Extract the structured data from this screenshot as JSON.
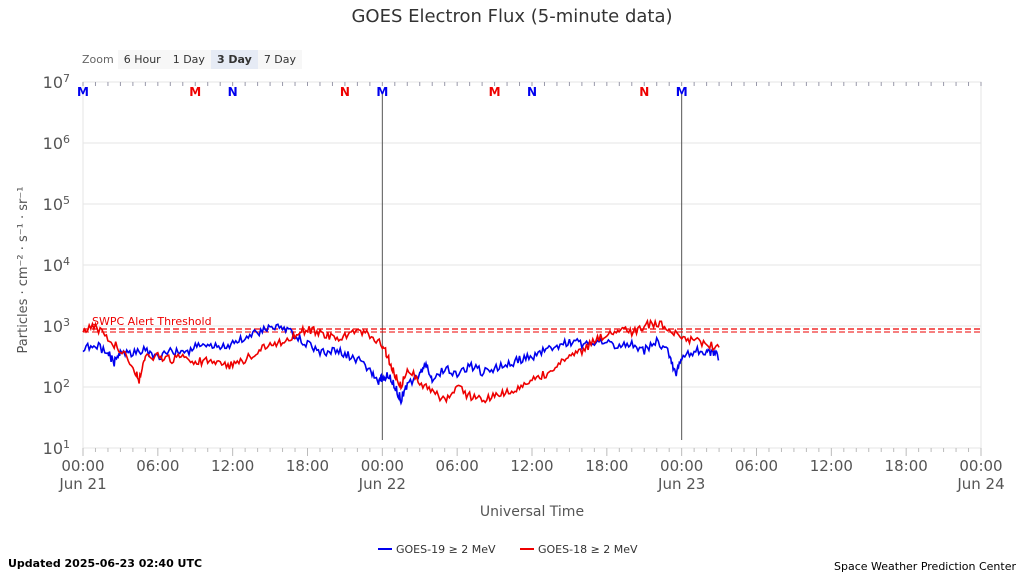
{
  "zoom": {
    "label": "Zoom",
    "buttons": [
      {
        "label": "6 Hour",
        "active": false
      },
      {
        "label": "1 Day",
        "active": false
      },
      {
        "label": "3 Day",
        "active": true
      },
      {
        "label": "7 Day",
        "active": false
      }
    ]
  },
  "footer": {
    "updated": "Updated 2025-06-23 02:40 UTC",
    "credit": "Space Weather Prediction Center"
  },
  "colors": {
    "goes19": "#0000ee",
    "goes18": "#ee0000",
    "threshold": "#ee0000",
    "grid": "#e6e6e6"
  },
  "chart_data": {
    "type": "line",
    "title": "GOES Electron Flux (5-minute data)",
    "xlabel": "Universal Time",
    "ylabel": "Particles · cm⁻² · s⁻¹ · sr⁻¹",
    "y_scale": "log",
    "ylim_exp": [
      1,
      7
    ],
    "y_ticks": [
      {
        "exp": 1,
        "base": "10",
        "sup": "1"
      },
      {
        "exp": 2,
        "base": "10",
        "sup": "2"
      },
      {
        "exp": 3,
        "base": "10",
        "sup": "3"
      },
      {
        "exp": 4,
        "base": "10",
        "sup": "4"
      },
      {
        "exp": 5,
        "base": "10",
        "sup": "5"
      },
      {
        "exp": 6,
        "base": "10",
        "sup": "6"
      },
      {
        "exp": 7,
        "base": "10",
        "sup": "7"
      }
    ],
    "x_range_hours": [
      0,
      72
    ],
    "x_ticks": [
      {
        "h": 0,
        "time": "00:00",
        "date": "Jun 21"
      },
      {
        "h": 6,
        "time": "06:00",
        "date": ""
      },
      {
        "h": 12,
        "time": "12:00",
        "date": ""
      },
      {
        "h": 18,
        "time": "18:00",
        "date": ""
      },
      {
        "h": 24,
        "time": "00:00",
        "date": "Jun 22"
      },
      {
        "h": 30,
        "time": "06:00",
        "date": ""
      },
      {
        "h": 36,
        "time": "12:00",
        "date": ""
      },
      {
        "h": 42,
        "time": "18:00",
        "date": ""
      },
      {
        "h": 48,
        "time": "00:00",
        "date": "Jun 23"
      },
      {
        "h": 54,
        "time": "06:00",
        "date": ""
      },
      {
        "h": 60,
        "time": "12:00",
        "date": ""
      },
      {
        "h": 66,
        "time": "18:00",
        "date": ""
      },
      {
        "h": 72,
        "time": "00:00",
        "date": "Jun 24"
      }
    ],
    "day_lines_hours": [
      24,
      48
    ],
    "threshold": {
      "label": "SWPC Alert Threshold",
      "exp": 3
    },
    "markers": [
      {
        "h": 0,
        "label": "M",
        "color": "blue"
      },
      {
        "h": 9,
        "label": "M",
        "color": "red"
      },
      {
        "h": 12,
        "label": "N",
        "color": "blue"
      },
      {
        "h": 21,
        "label": "N",
        "color": "red"
      },
      {
        "h": 24,
        "label": "M",
        "color": "blue"
      },
      {
        "h": 33,
        "label": "M",
        "color": "red"
      },
      {
        "h": 36,
        "label": "N",
        "color": "blue"
      },
      {
        "h": 45,
        "label": "N",
        "color": "red"
      },
      {
        "h": 48,
        "label": "M",
        "color": "blue"
      }
    ],
    "series": [
      {
        "name": "GOES-19 ≥ 2 MeV",
        "color": "#0000ee",
        "points": [
          [
            0,
            2.65
          ],
          [
            1,
            2.7
          ],
          [
            2,
            2.55
          ],
          [
            2.5,
            2.4
          ],
          [
            3,
            2.6
          ],
          [
            4,
            2.55
          ],
          [
            5,
            2.6
          ],
          [
            6,
            2.5
          ],
          [
            7,
            2.6
          ],
          [
            8,
            2.55
          ],
          [
            9,
            2.65
          ],
          [
            10,
            2.7
          ],
          [
            11,
            2.65
          ],
          [
            12,
            2.7
          ],
          [
            13,
            2.8
          ],
          [
            14,
            2.9
          ],
          [
            15,
            2.95
          ],
          [
            16,
            2.98
          ],
          [
            17,
            2.85
          ],
          [
            18,
            2.7
          ],
          [
            19,
            2.55
          ],
          [
            20,
            2.6
          ],
          [
            21,
            2.55
          ],
          [
            22,
            2.45
          ],
          [
            23,
            2.3
          ],
          [
            23.7,
            2.1
          ],
          [
            24,
            2.15
          ],
          [
            24.5,
            2.2
          ],
          [
            25,
            2.0
          ],
          [
            25.5,
            1.8
          ],
          [
            26,
            2.05
          ],
          [
            27,
            2.2
          ],
          [
            27.5,
            2.35
          ],
          [
            28,
            2.1
          ],
          [
            29,
            2.3
          ],
          [
            30,
            2.2
          ],
          [
            31,
            2.35
          ],
          [
            32,
            2.25
          ],
          [
            33,
            2.3
          ],
          [
            34,
            2.35
          ],
          [
            35,
            2.45
          ],
          [
            36,
            2.5
          ],
          [
            37,
            2.6
          ],
          [
            38,
            2.65
          ],
          [
            39,
            2.75
          ],
          [
            40,
            2.7
          ],
          [
            41,
            2.7
          ],
          [
            42,
            2.75
          ],
          [
            43,
            2.65
          ],
          [
            44,
            2.72
          ],
          [
            45,
            2.6
          ],
          [
            46,
            2.75
          ],
          [
            47,
            2.55
          ],
          [
            47.5,
            2.2
          ],
          [
            48,
            2.45
          ],
          [
            49,
            2.6
          ],
          [
            50,
            2.55
          ],
          [
            50.5,
            2.6
          ],
          [
            51,
            2.45
          ]
        ]
      },
      {
        "name": "GOES-18 ≥ 2 MeV",
        "color": "#ee0000",
        "points": [
          [
            0,
            2.9
          ],
          [
            1,
            3.0
          ],
          [
            2,
            2.8
          ],
          [
            3,
            2.6
          ],
          [
            4,
            2.35
          ],
          [
            4.5,
            2.1
          ],
          [
            5,
            2.5
          ],
          [
            6,
            2.5
          ],
          [
            7,
            2.45
          ],
          [
            8,
            2.5
          ],
          [
            9,
            2.4
          ],
          [
            10,
            2.45
          ],
          [
            11,
            2.4
          ],
          [
            12,
            2.35
          ],
          [
            13,
            2.45
          ],
          [
            14,
            2.6
          ],
          [
            15,
            2.7
          ],
          [
            16,
            2.75
          ],
          [
            17,
            2.85
          ],
          [
            18,
            2.95
          ],
          [
            19,
            2.9
          ],
          [
            20,
            2.8
          ],
          [
            21,
            2.85
          ],
          [
            22,
            2.9
          ],
          [
            23,
            2.85
          ],
          [
            24,
            2.7
          ],
          [
            24.5,
            2.45
          ],
          [
            25,
            2.2
          ],
          [
            25.5,
            2.0
          ],
          [
            26,
            2.3
          ],
          [
            27,
            2.1
          ],
          [
            28,
            1.9
          ],
          [
            29,
            1.8
          ],
          [
            30,
            2.0
          ],
          [
            31,
            1.85
          ],
          [
            32,
            1.8
          ],
          [
            33,
            1.85
          ],
          [
            34,
            1.9
          ],
          [
            35,
            2.0
          ],
          [
            36,
            2.15
          ],
          [
            37,
            2.2
          ],
          [
            38,
            2.35
          ],
          [
            39,
            2.5
          ],
          [
            40,
            2.6
          ],
          [
            41,
            2.75
          ],
          [
            42,
            2.85
          ],
          [
            43,
            2.95
          ],
          [
            44,
            2.9
          ],
          [
            45,
            3.0
          ],
          [
            46,
            3.05
          ],
          [
            47,
            2.95
          ],
          [
            48,
            2.8
          ],
          [
            49,
            2.75
          ],
          [
            50,
            2.7
          ],
          [
            51,
            2.65
          ]
        ]
      }
    ]
  }
}
